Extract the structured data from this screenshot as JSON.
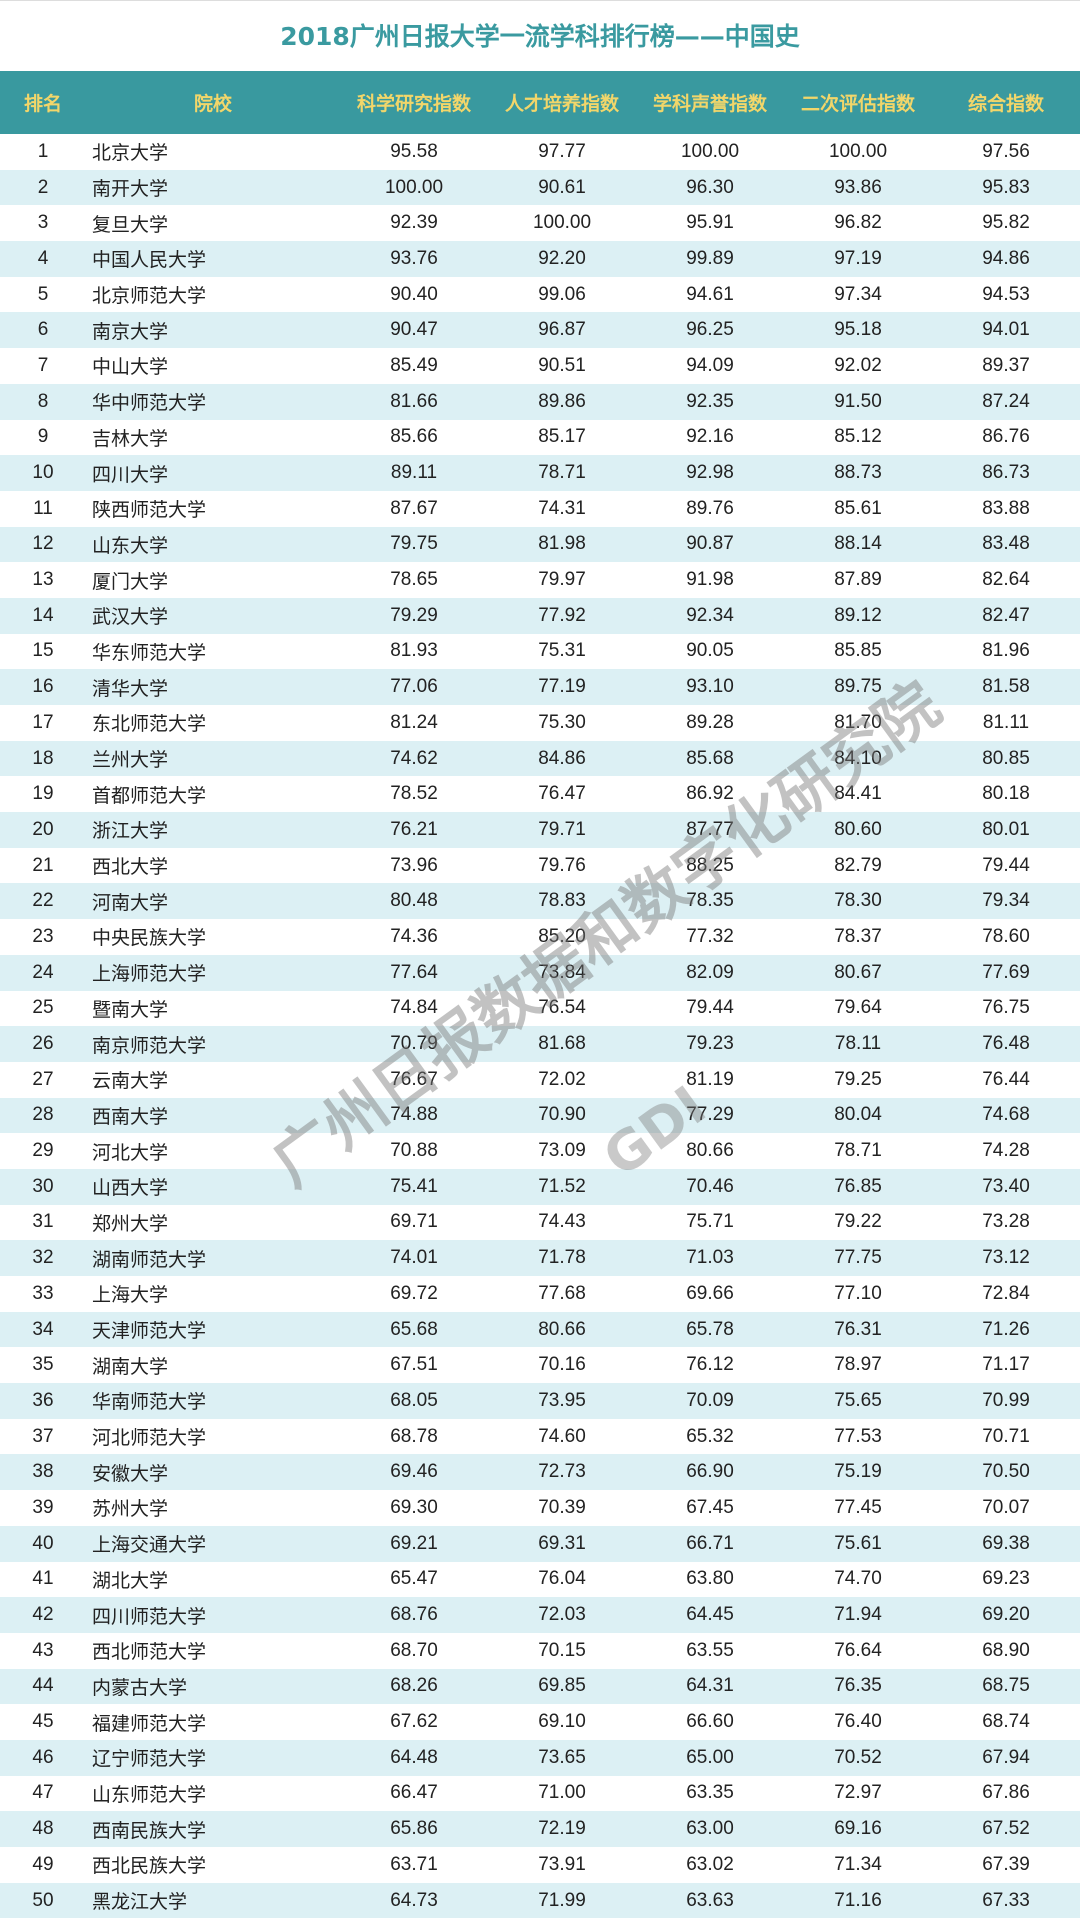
{
  "title": "2018广州日报大学一流学科排行榜——中国史",
  "columns": [
    "排名",
    "院校",
    "科学研究指数",
    "人才培养指数",
    "学科声誉指数",
    "二次评估指数",
    "综合指数"
  ],
  "rows": [
    [
      "1",
      "北京大学",
      "95.58",
      "97.77",
      "100.00",
      "100.00",
      "97.56"
    ],
    [
      "2",
      "南开大学",
      "100.00",
      "90.61",
      "96.30",
      "93.86",
      "95.83"
    ],
    [
      "3",
      "复旦大学",
      "92.39",
      "100.00",
      "95.91",
      "96.82",
      "95.82"
    ],
    [
      "4",
      "中国人民大学",
      "93.76",
      "92.20",
      "99.89",
      "97.19",
      "94.86"
    ],
    [
      "5",
      "北京师范大学",
      "90.40",
      "99.06",
      "94.61",
      "97.34",
      "94.53"
    ],
    [
      "6",
      "南京大学",
      "90.47",
      "96.87",
      "96.25",
      "95.18",
      "94.01"
    ],
    [
      "7",
      "中山大学",
      "85.49",
      "90.51",
      "94.09",
      "92.02",
      "89.37"
    ],
    [
      "8",
      "华中师范大学",
      "81.66",
      "89.86",
      "92.35",
      "91.50",
      "87.24"
    ],
    [
      "9",
      "吉林大学",
      "85.66",
      "85.17",
      "92.16",
      "85.12",
      "86.76"
    ],
    [
      "10",
      "四川大学",
      "89.11",
      "78.71",
      "92.98",
      "88.73",
      "86.73"
    ],
    [
      "11",
      "陕西师范大学",
      "87.67",
      "74.31",
      "89.76",
      "85.61",
      "83.88"
    ],
    [
      "12",
      "山东大学",
      "79.75",
      "81.98",
      "90.87",
      "88.14",
      "83.48"
    ],
    [
      "13",
      "厦门大学",
      "78.65",
      "79.97",
      "91.98",
      "87.89",
      "82.64"
    ],
    [
      "14",
      "武汉大学",
      "79.29",
      "77.92",
      "92.34",
      "89.12",
      "82.47"
    ],
    [
      "15",
      "华东师范大学",
      "81.93",
      "75.31",
      "90.05",
      "85.85",
      "81.96"
    ],
    [
      "16",
      "清华大学",
      "77.06",
      "77.19",
      "93.10",
      "89.75",
      "81.58"
    ],
    [
      "17",
      "东北师范大学",
      "81.24",
      "75.30",
      "89.28",
      "81.70",
      "81.11"
    ],
    [
      "18",
      "兰州大学",
      "74.62",
      "84.86",
      "85.68",
      "84.10",
      "80.85"
    ],
    [
      "19",
      "首都师范大学",
      "78.52",
      "76.47",
      "86.92",
      "84.41",
      "80.18"
    ],
    [
      "20",
      "浙江大学",
      "76.21",
      "79.71",
      "87.77",
      "80.60",
      "80.01"
    ],
    [
      "21",
      "西北大学",
      "73.96",
      "79.76",
      "88.25",
      "82.79",
      "79.44"
    ],
    [
      "22",
      "河南大学",
      "80.48",
      "78.83",
      "78.35",
      "78.30",
      "79.34"
    ],
    [
      "23",
      "中央民族大学",
      "74.36",
      "85.20",
      "77.32",
      "78.37",
      "78.60"
    ],
    [
      "24",
      "上海师范大学",
      "77.64",
      "73.84",
      "82.09",
      "80.67",
      "77.69"
    ],
    [
      "25",
      "暨南大学",
      "74.84",
      "76.54",
      "79.44",
      "79.64",
      "76.75"
    ],
    [
      "26",
      "南京师范大学",
      "70.79",
      "81.68",
      "79.23",
      "78.11",
      "76.48"
    ],
    [
      "27",
      "云南大学",
      "76.67",
      "72.02",
      "81.19",
      "79.25",
      "76.44"
    ],
    [
      "28",
      "西南大学",
      "74.88",
      "70.90",
      "77.29",
      "80.04",
      "74.68"
    ],
    [
      "29",
      "河北大学",
      "70.88",
      "73.09",
      "80.66",
      "78.71",
      "74.28"
    ],
    [
      "30",
      "山西大学",
      "75.41",
      "71.52",
      "70.46",
      "76.85",
      "73.40"
    ],
    [
      "31",
      "郑州大学",
      "69.71",
      "74.43",
      "75.71",
      "79.22",
      "73.28"
    ],
    [
      "32",
      "湖南师范大学",
      "74.01",
      "71.78",
      "71.03",
      "77.75",
      "73.12"
    ],
    [
      "33",
      "上海大学",
      "69.72",
      "77.68",
      "69.66",
      "77.10",
      "72.84"
    ],
    [
      "34",
      "天津师范大学",
      "65.68",
      "80.66",
      "65.78",
      "76.31",
      "71.26"
    ],
    [
      "35",
      "湖南大学",
      "67.51",
      "70.16",
      "76.12",
      "78.97",
      "71.17"
    ],
    [
      "36",
      "华南师范大学",
      "68.05",
      "73.95",
      "70.09",
      "75.65",
      "70.99"
    ],
    [
      "37",
      "河北师范大学",
      "68.78",
      "74.60",
      "65.32",
      "77.53",
      "70.71"
    ],
    [
      "38",
      "安徽大学",
      "69.46",
      "72.73",
      "66.90",
      "75.19",
      "70.50"
    ],
    [
      "39",
      "苏州大学",
      "69.30",
      "70.39",
      "67.45",
      "77.45",
      "70.07"
    ],
    [
      "40",
      "上海交通大学",
      "69.21",
      "69.31",
      "66.71",
      "75.61",
      "69.38"
    ],
    [
      "41",
      "湖北大学",
      "65.47",
      "76.04",
      "63.80",
      "74.70",
      "69.23"
    ],
    [
      "42",
      "四川师范大学",
      "68.76",
      "72.03",
      "64.45",
      "71.94",
      "69.20"
    ],
    [
      "43",
      "西北师范大学",
      "68.70",
      "70.15",
      "63.55",
      "76.64",
      "68.90"
    ],
    [
      "44",
      "内蒙古大学",
      "68.26",
      "69.85",
      "64.31",
      "76.35",
      "68.75"
    ],
    [
      "45",
      "福建师范大学",
      "67.62",
      "69.10",
      "66.60",
      "76.40",
      "68.74"
    ],
    [
      "46",
      "辽宁师范大学",
      "64.48",
      "73.65",
      "65.00",
      "70.52",
      "67.94"
    ],
    [
      "47",
      "山东师范大学",
      "66.47",
      "71.00",
      "63.35",
      "72.97",
      "67.86"
    ],
    [
      "48",
      "西南民族大学",
      "65.86",
      "72.19",
      "63.00",
      "69.16",
      "67.52"
    ],
    [
      "49",
      "西北民族大学",
      "63.71",
      "73.91",
      "63.02",
      "71.34",
      "67.39"
    ],
    [
      "50",
      "黑龙江大学",
      "64.73",
      "71.99",
      "63.63",
      "71.16",
      "67.33"
    ]
  ],
  "watermark": {
    "text": "广州日报数据和数字化研究院",
    "logo": "GDI"
  },
  "colors": {
    "header_bg": "#39999f",
    "header_text": "#f2d66a",
    "title": "#3a9aa0",
    "stripe": "#dcf0f4"
  }
}
